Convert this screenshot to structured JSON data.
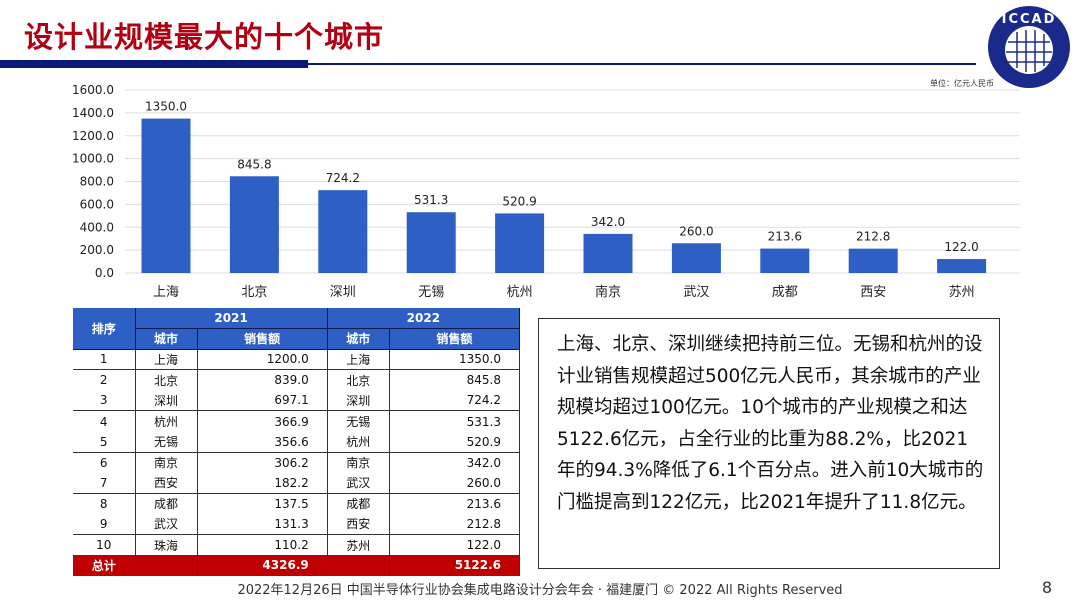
{
  "header": {
    "title": "设计业规模最大的十个城市",
    "logo_text": "ICCAD",
    "unit": "单位：亿元人民币"
  },
  "chart_data": {
    "type": "bar",
    "categories": [
      "上海",
      "北京",
      "深圳",
      "无锡",
      "杭州",
      "南京",
      "武汉",
      "成都",
      "西安",
      "苏州"
    ],
    "values": [
      1350.0,
      845.8,
      724.2,
      531.3,
      520.9,
      342.0,
      260.0,
      213.6,
      212.8,
      122.0
    ],
    "value_labels": [
      "1350.0",
      "845.8",
      "724.2",
      "531.3",
      "520.9",
      "342.0",
      "260.0",
      "213.6",
      "212.8",
      "122.0"
    ],
    "ylim": [
      0,
      1600
    ],
    "yticks": [
      "0.0",
      "200.0",
      "400.0",
      "600.0",
      "800.0",
      "1000.0",
      "1200.0",
      "1400.0",
      "1600.0"
    ],
    "grid": true,
    "color": "#2e5fc4"
  },
  "table": {
    "rank_header": "排序",
    "years": [
      "2021",
      "2022"
    ],
    "city_header": "城市",
    "sales_header": "销售额",
    "rows": [
      {
        "rank": "1",
        "c1": "上海",
        "v1": "1200.0",
        "c2": "上海",
        "v2": "1350.0"
      },
      {
        "rank": "2",
        "c1": "北京",
        "v1": "839.0",
        "c2": "北京",
        "v2": "845.8"
      },
      {
        "rank": "3",
        "c1": "深圳",
        "v1": "697.1",
        "c2": "深圳",
        "v2": "724.2"
      },
      {
        "rank": "4",
        "c1": "杭州",
        "v1": "366.9",
        "c2": "无锡",
        "v2": "531.3"
      },
      {
        "rank": "5",
        "c1": "无锡",
        "v1": "356.6",
        "c2": "杭州",
        "v2": "520.9"
      },
      {
        "rank": "6",
        "c1": "南京",
        "v1": "306.2",
        "c2": "南京",
        "v2": "342.0"
      },
      {
        "rank": "7",
        "c1": "西安",
        "v1": "182.2",
        "c2": "武汉",
        "v2": "260.0"
      },
      {
        "rank": "8",
        "c1": "成都",
        "v1": "137.5",
        "c2": "成都",
        "v2": "213.6"
      },
      {
        "rank": "9",
        "c1": "武汉",
        "v1": "131.3",
        "c2": "西安",
        "v2": "212.8"
      },
      {
        "rank": "10",
        "c1": "珠海",
        "v1": "110.2",
        "c2": "苏州",
        "v2": "122.0"
      }
    ],
    "total_label": "总计",
    "total_2021": "4326.9",
    "total_2022": "5122.6"
  },
  "summary": "上海、北京、深圳继续把持前三位。无锡和杭州的设计业销售规模超过500亿元人民币，其余城市的产业规模均超过100亿元。10个城市的产业规模之和达5122.6亿元，占全行业的比重为88.2%，比2021年的94.3%降低了6.1个百分点。进入前10大城市的门槛提高到122亿元，比2021年提升了11.8亿元。",
  "footer": {
    "text": "2022年12月26日 中国半导体行业协会集成电路设计分会年会 · 福建厦门 © 2022 All Rights Reserved",
    "page": "8"
  }
}
